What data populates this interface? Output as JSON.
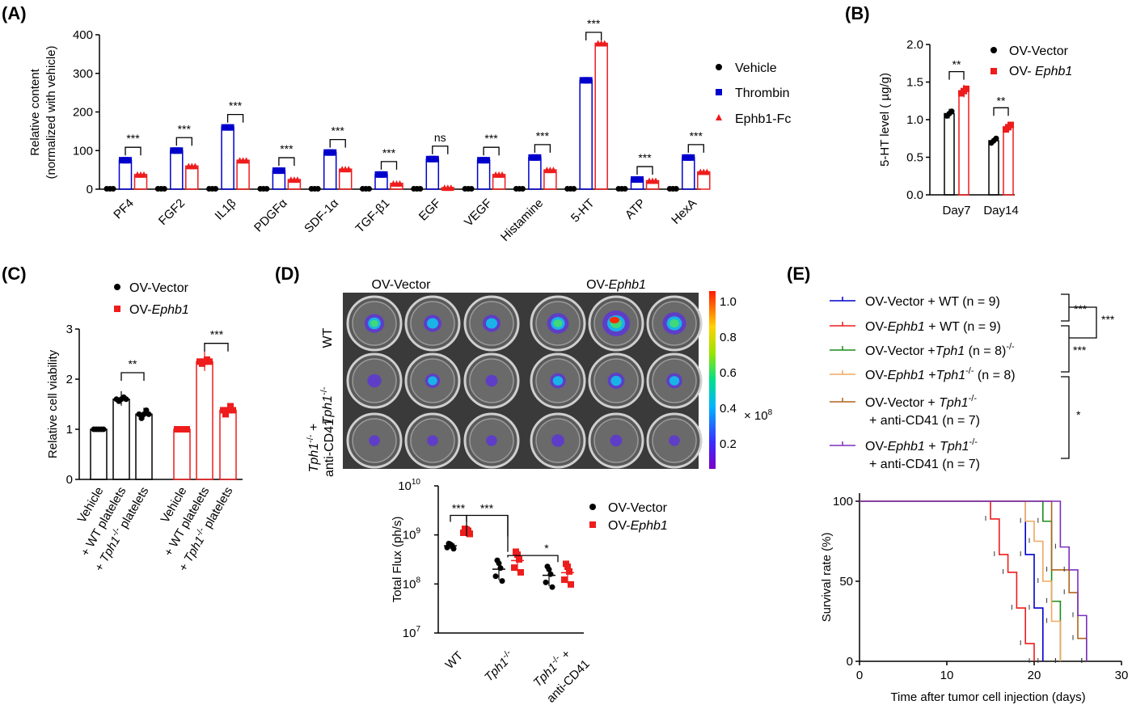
{
  "colors": {
    "black": "#000000",
    "blue": "#0000cc",
    "red": "#ee1c1c",
    "green": "#1a8c1a",
    "tan": "#f0a860",
    "brown": "#b0641e",
    "purple": "#7b2fbe"
  },
  "panel_labels": [
    "(A)",
    "(B)",
    "(C)",
    "(D)",
    "(E)"
  ],
  "chart_data": [
    {
      "type": "bar",
      "panel": "(A)",
      "ylabel": "Relative content",
      "ylabel2": "(normalized with vehicle)",
      "ylim": [
        0,
        400
      ],
      "yticks": [
        0,
        100,
        200,
        300,
        400
      ],
      "categories": [
        "PF4",
        "FGF2",
        "IL1β",
        "PDGFα",
        "SDF-1α",
        "TGF-β1",
        "EGF",
        "VEGF",
        "Histamine",
        "5-HT",
        "ATP",
        "HexA"
      ],
      "series": [
        {
          "name": "Vehicle",
          "marker": "circle",
          "values": [
            1,
            1,
            1,
            1,
            1,
            1,
            1,
            1,
            1,
            1,
            1,
            1
          ]
        },
        {
          "name": "Thrombin",
          "marker": "square",
          "values": [
            75,
            100,
            160,
            48,
            95,
            38,
            78,
            75,
            82,
            282,
            25,
            82
          ]
        },
        {
          "name": "Ephb1-Fc",
          "marker": "triangle",
          "values": [
            38,
            60,
            75,
            25,
            52,
            15,
            4,
            38,
            50,
            378,
            22,
            45
          ]
        }
      ],
      "significance": [
        "***",
        "***",
        "***",
        "***",
        "***",
        "***",
        "ns",
        "***",
        "***",
        "***",
        "***",
        "***"
      ],
      "grid": false
    },
    {
      "type": "bar",
      "panel": "(B)",
      "ylabel": "5-HT level ( µg/g)",
      "ylim": [
        0,
        2.0
      ],
      "yticks": [
        "0.0",
        "0.5",
        "1.0",
        "1.5",
        "2.0"
      ],
      "categories": [
        "Day7",
        "Day14"
      ],
      "series": [
        {
          "name": "OV-Vector",
          "values": [
            1.08,
            0.72
          ]
        },
        {
          "name": "OV- Ephb1",
          "values": [
            1.38,
            0.9
          ]
        }
      ],
      "significance": [
        "**",
        "**"
      ]
    },
    {
      "type": "bar",
      "panel": "(C)",
      "ylabel": "Relative cell viability",
      "ylim": [
        0,
        3
      ],
      "yticks": [
        0,
        1,
        2,
        3
      ],
      "categories": [
        "Vehicle",
        "+ WT platelets",
        "+ Tph1-/- platelets"
      ],
      "series": [
        {
          "name": "OV-Vector",
          "values": [
            1.0,
            1.6,
            1.3
          ]
        },
        {
          "name": "OV-Ephb1",
          "values": [
            1.0,
            2.35,
            1.38
          ]
        }
      ],
      "significance": [
        "**",
        "***"
      ]
    },
    {
      "type": "scatter",
      "panel": "(D)",
      "ylabel": "Total Flux (ph/s)",
      "yscale": "log",
      "ylim": [
        10000000,
        10000000000
      ],
      "categories": [
        "WT",
        "Tph1-/-",
        "Tph1-/- + anti-CD41"
      ],
      "series": [
        {
          "name": "OV-Vector",
          "values": [
            600000000,
            200000000,
            150000000
          ]
        },
        {
          "name": "OV-Ephb1",
          "values": [
            1200000000,
            300000000,
            170000000
          ]
        }
      ],
      "significance": [
        "***",
        "***",
        "*"
      ]
    },
    {
      "type": "line",
      "panel": "(E)",
      "subtype": "step (Kaplan-Meier)",
      "xlabel": "Time after tumor cell injection (days)",
      "ylabel": "Survival rate (%)",
      "xlim": [
        0,
        30
      ],
      "ylim": [
        0,
        100
      ],
      "xticks": [
        0,
        10,
        20,
        30
      ],
      "yticks": [
        0,
        50,
        100
      ],
      "series": [
        {
          "name": "OV-Vector + WT (n = 9)",
          "x": [
            0,
            19,
            20,
            21
          ],
          "y": [
            100,
            66.7,
            33.3,
            0
          ]
        },
        {
          "name": "OV-Ephb1 + WT (n = 9)",
          "x": [
            0,
            15,
            16,
            17,
            18,
            19,
            20
          ],
          "y": [
            100,
            88.9,
            66.7,
            55.6,
            33.3,
            11.1,
            0
          ]
        },
        {
          "name": "OV-Vector +Tph1-/- (n = 8)",
          "x": [
            0,
            21,
            22,
            23
          ],
          "y": [
            100,
            87.5,
            37.5,
            0
          ]
        },
        {
          "name": "OV-Ephb1 +Tph1-/- (n = 8)",
          "x": [
            0,
            19,
            20,
            21,
            22,
            23
          ],
          "y": [
            100,
            87.5,
            75,
            50,
            25,
            0
          ]
        },
        {
          "name": "OV-Vector + Tph1-/- + anti-CD41 (n = 7)",
          "x": [
            0,
            22,
            24,
            25,
            26
          ],
          "y": [
            100,
            57.1,
            42.9,
            14.3,
            0
          ]
        },
        {
          "name": "OV-Ephb1 + Tph1-/- + anti-CD41 (n = 7)",
          "x": [
            0,
            23,
            24,
            25,
            26
          ],
          "y": [
            100,
            71.4,
            57.1,
            28.6,
            0
          ]
        }
      ],
      "significance": [
        "***",
        "***",
        "***",
        "*"
      ]
    }
  ],
  "panelA": {
    "categories": [
      "PF4",
      "FGF2",
      "IL1β",
      "PDGFα",
      "SDF-1α",
      "TGF-β1",
      "EGF",
      "VEGF",
      "Histamine",
      "5-HT",
      "ATP",
      "HexA"
    ],
    "yticks": [
      "0",
      "100",
      "200",
      "300",
      "400"
    ],
    "ylabel": "Relative content",
    "ylabel2": "(normalized with vehicle)",
    "legend": [
      "Vehicle",
      "Thrombin",
      "Ephb1-Fc"
    ],
    "sig": [
      "***",
      "***",
      "***",
      "***",
      "***",
      "***",
      "ns",
      "***",
      "***",
      "***",
      "***",
      "***"
    ]
  },
  "panelB": {
    "ylabel": "5-HT level ( µg/g)",
    "yticks": [
      "0.0",
      "0.5",
      "1.0",
      "1.5",
      "2.0"
    ],
    "categories": [
      "Day7",
      "Day14"
    ],
    "legend_vector": "OV-Vector",
    "legend_ephb1_prefix": "OV- ",
    "legend_ephb1_gene": "Ephb1",
    "sig": [
      "**",
      "**"
    ]
  },
  "panelC": {
    "ylabel": "Relative cell viability",
    "yticks": [
      "0",
      "1",
      "2",
      "3"
    ],
    "legend_vector": "OV-Vector",
    "legend_ephb1_prefix": "OV-",
    "legend_ephb1_gene": "Ephb1",
    "xlabels": [
      "Vehicle",
      "+ WT platelets",
      "+ "
    ],
    "tph": "Tph1",
    "ko": "-/-",
    "platelets": " platelets",
    "sig": [
      "**",
      "***"
    ]
  },
  "panelD": {
    "col_vector": "OV-Vector",
    "col_ephb1_prefix": "OV-",
    "col_ephb1_gene": "Ephb1",
    "row_wt": "WT",
    "row_tph": "Tph1",
    "ko": "-/-",
    "row_tph_cd41a": "Tph1",
    "row_tph_cd41b": "-/-",
    "row_tph_cd41c": " +",
    "row_cd41": "anti-CD41",
    "scale": [
      "1.0",
      "0.8",
      "0.6",
      "0.4",
      "0.2"
    ],
    "scale_unit": "× 10",
    "scale_exp": "8",
    "ylabel": "Total Flux (ph/s)",
    "ytick_base": "10",
    "ytick_exps": [
      "10",
      "9",
      "8",
      "7"
    ],
    "xlabels": [
      "WT",
      "Tph1",
      "-/-",
      "Tph1",
      "-/-",
      " +",
      "anti-CD41"
    ],
    "legend_vector": "OV-Vector",
    "legend_ephb1_prefix": "OV-",
    "legend_ephb1_gene": "Ephb1",
    "sig": [
      "***",
      "***",
      "*"
    ]
  },
  "panelE": {
    "legend": [
      {
        "a": "OV-Vector + WT (n = 9)"
      },
      {
        "a": "OV-",
        "g": "Ephb1",
        "b": " + WT (n = 9)"
      },
      {
        "a": "OV-Vector +",
        "g": "Tph1",
        "k": "-/-",
        "b": " (n = 8)"
      },
      {
        "a": "OV-",
        "g": "Ephb1",
        "b": " +",
        "g2": "Tph1",
        "k": "-/-",
        "c": " (n = 8)"
      },
      {
        "a": "OV-Vector + ",
        "g": "Tph1",
        "k": "-/-",
        "line2": "+ anti-CD41 (n = 7)"
      },
      {
        "a": "OV-",
        "g": "Ephb1",
        "b": " + ",
        "g2": "Tph1",
        "k": "-/-",
        "line2": "+ anti-CD41 (n = 7)"
      }
    ],
    "sig": [
      "***",
      "***",
      "***",
      "*"
    ],
    "ylabel": "Survival rate (%)",
    "xlabel": "Time after tumor cell injection (days)",
    "xticks": [
      "0",
      "10",
      "20",
      "30"
    ],
    "yticks": [
      "0",
      "50",
      "100"
    ]
  }
}
